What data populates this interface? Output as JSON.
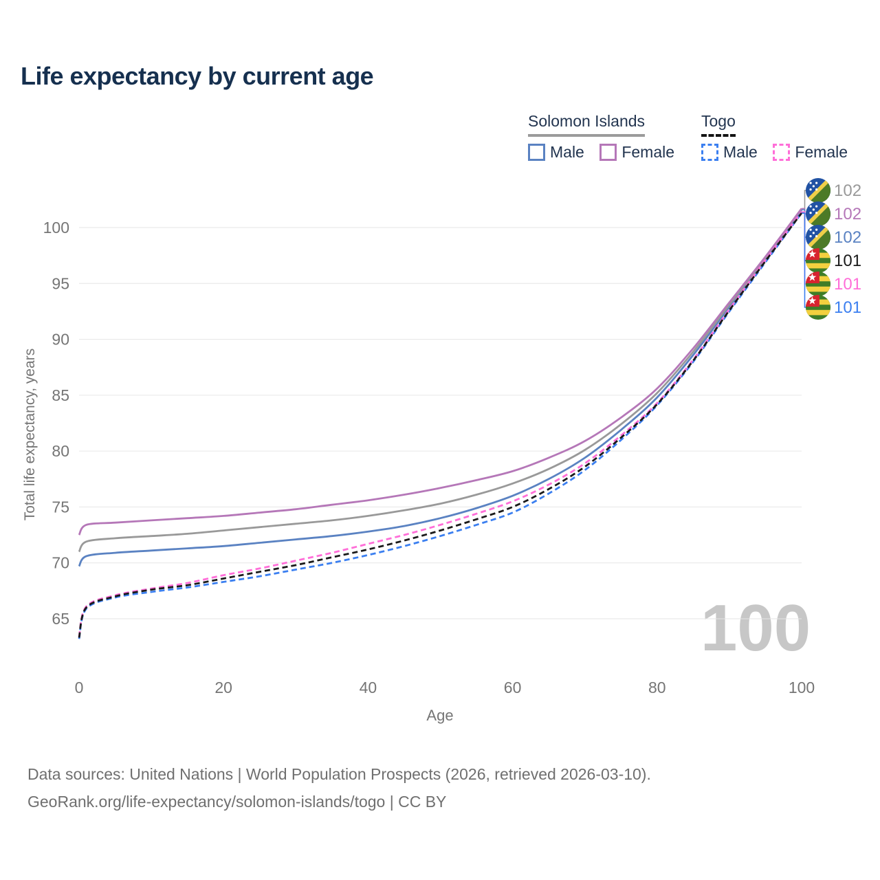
{
  "title": "Life expectancy by current age",
  "watermark": "100",
  "legend": {
    "groups": [
      {
        "name": "Solomon Islands",
        "underline": "solid",
        "items": [
          {
            "label": "Male",
            "color": "#5a82c2",
            "dash": false
          },
          {
            "label": "Female",
            "color": "#b577b8",
            "dash": false
          }
        ]
      },
      {
        "name": "Togo",
        "underline": "dashed",
        "items": [
          {
            "label": "Male",
            "color": "#3b7ff0",
            "dash": true
          },
          {
            "label": "Female",
            "color": "#ff6ed8",
            "dash": true
          }
        ]
      }
    ]
  },
  "chart_data": {
    "type": "line",
    "title": "Life expectancy by current age",
    "xlabel": "Age",
    "ylabel": "Total life expectancy, years",
    "xlim": [
      0,
      100
    ],
    "ylim": [
      63,
      102
    ],
    "x_ticks": [
      0,
      20,
      40,
      60,
      80,
      100
    ],
    "y_ticks": [
      65,
      70,
      75,
      80,
      85,
      90,
      95,
      100
    ],
    "grid": "horizontal",
    "legend_position": "top-right",
    "ages": [
      0,
      1,
      5,
      10,
      15,
      20,
      25,
      30,
      35,
      40,
      45,
      50,
      55,
      60,
      65,
      70,
      75,
      80,
      85,
      90,
      95,
      100
    ],
    "series": [
      {
        "name": "Solomon Islands all",
        "country": "Solomon Islands",
        "sex": "all",
        "color": "#999999",
        "dash": false,
        "flag": "solomon-islands",
        "end_label": "102",
        "values": [
          71.0,
          71.9,
          72.2,
          72.4,
          72.6,
          72.9,
          73.2,
          73.5,
          73.8,
          74.2,
          74.7,
          75.3,
          76.1,
          77.1,
          78.4,
          80.1,
          82.4,
          85.2,
          88.9,
          93.1,
          97.3,
          101.7
        ]
      },
      {
        "name": "Solomon Islands female",
        "country": "Solomon Islands",
        "sex": "female",
        "color": "#b577b8",
        "dash": false,
        "flag": "solomon-islands",
        "end_label": "102",
        "values": [
          72.5,
          73.4,
          73.6,
          73.8,
          74.0,
          74.2,
          74.5,
          74.8,
          75.2,
          75.6,
          76.1,
          76.7,
          77.4,
          78.2,
          79.4,
          80.9,
          83.0,
          85.6,
          89.2,
          93.3,
          97.4,
          101.7
        ]
      },
      {
        "name": "Solomon Islands male",
        "country": "Solomon Islands",
        "sex": "male",
        "color": "#5a82c2",
        "dash": false,
        "flag": "solomon-islands",
        "end_label": "102",
        "values": [
          69.7,
          70.6,
          70.9,
          71.1,
          71.3,
          71.5,
          71.8,
          72.1,
          72.4,
          72.8,
          73.3,
          74.0,
          74.9,
          76.0,
          77.5,
          79.4,
          81.9,
          84.8,
          88.6,
          92.9,
          97.2,
          101.6
        ]
      },
      {
        "name": "Togo all",
        "country": "Togo",
        "sex": "all",
        "color": "#1a1a1a",
        "dash": true,
        "flag": "togo",
        "end_label": "101",
        "values": [
          63.3,
          66.0,
          67.0,
          67.6,
          68.0,
          68.6,
          69.2,
          69.8,
          70.5,
          71.2,
          72.0,
          72.9,
          73.9,
          75.0,
          76.6,
          78.6,
          81.2,
          84.2,
          88.1,
          92.6,
          97.0,
          101.3
        ]
      },
      {
        "name": "Togo female",
        "country": "Togo",
        "sex": "female",
        "color": "#ff6ed8",
        "dash": true,
        "flag": "togo",
        "end_label": "101",
        "values": [
          63.4,
          66.1,
          67.1,
          67.7,
          68.2,
          68.9,
          69.5,
          70.2,
          70.9,
          71.7,
          72.5,
          73.4,
          74.4,
          75.5,
          77.0,
          78.9,
          81.4,
          84.3,
          88.2,
          92.7,
          97.1,
          101.4
        ]
      },
      {
        "name": "Togo male",
        "country": "Togo",
        "sex": "male",
        "color": "#3b7ff0",
        "dash": true,
        "flag": "togo",
        "end_label": "101",
        "values": [
          63.2,
          65.9,
          66.9,
          67.4,
          67.8,
          68.3,
          68.8,
          69.4,
          70.0,
          70.7,
          71.5,
          72.4,
          73.4,
          74.5,
          76.2,
          78.3,
          81.0,
          84.1,
          88.0,
          92.5,
          96.9,
          101.3
        ]
      }
    ]
  },
  "footer": {
    "line1": "Data sources: United Nations | World Population Prospects (2026, retrieved 2026-03-10).",
    "line2": "GeoRank.org/life-expectancy/solomon-islands/togo | CC BY"
  }
}
